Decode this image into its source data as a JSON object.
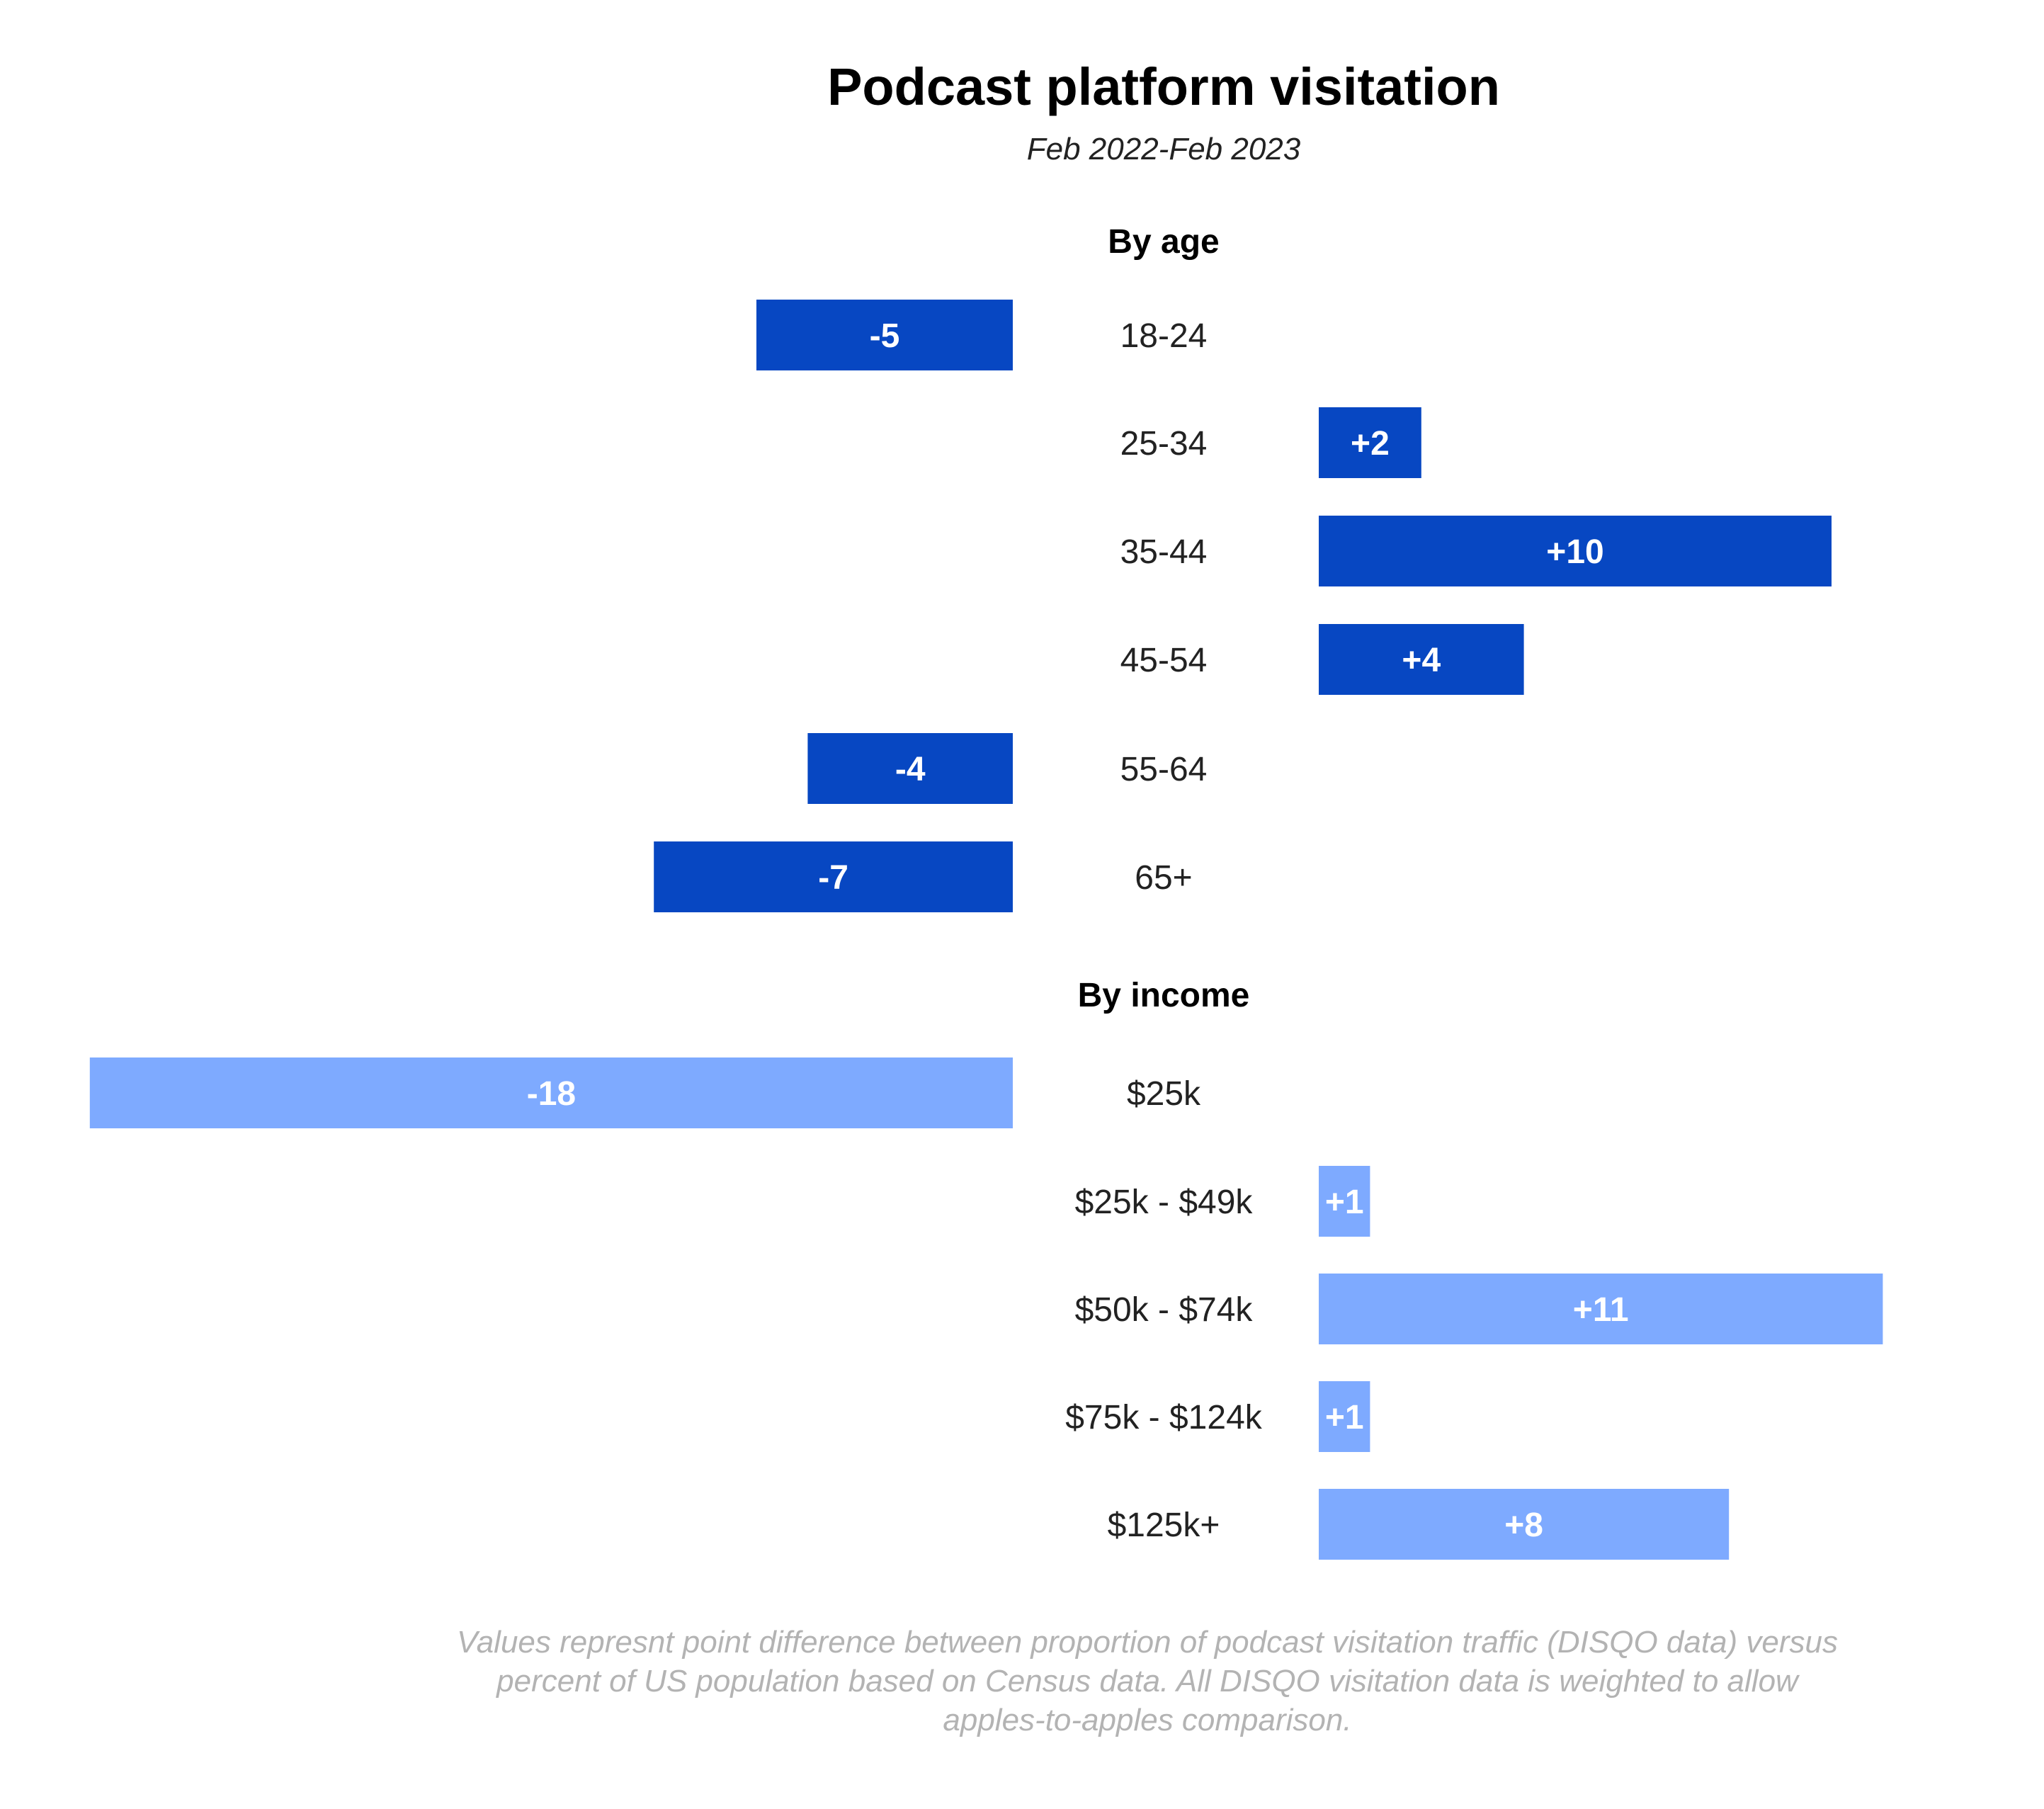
{
  "chart_data": [
    {
      "type": "bar",
      "orientation": "horizontal-diverging",
      "title": "Podcast platform visitation",
      "subtitle": "Feb 2022-Feb 2023",
      "section": "By age",
      "categories": [
        "18-24",
        "25-34",
        "35-44",
        "45-54",
        "55-64",
        "65+"
      ],
      "values": [
        -5,
        2,
        10,
        4,
        -4,
        -7
      ],
      "value_labels": [
        "-5",
        "+2",
        "+10",
        "+4",
        "-4",
        "-7"
      ],
      "color": "#0747c2"
    },
    {
      "type": "bar",
      "orientation": "horizontal-diverging",
      "section": "By income",
      "categories": [
        "$25k",
        "$25k - $49k",
        "$50k - $74k",
        "$75k - $124k",
        "$125k+"
      ],
      "values": [
        -18,
        1,
        11,
        1,
        8
      ],
      "value_labels": [
        "-18",
        "+1",
        "+11",
        "+1",
        "+8"
      ],
      "color": "#7eaaff"
    }
  ],
  "footnote": [
    "Values represnt point difference between proportion of podcast visitation traffic (DISQO data) versus",
    "percent of US population based on Census data. All DISQO visitation data is weighted to allow",
    "apples-to-apples comparison."
  ]
}
